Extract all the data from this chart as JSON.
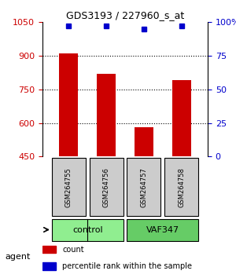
{
  "title": "GDS3193 / 227960_s_at",
  "samples": [
    "GSM264755",
    "GSM264756",
    "GSM264757",
    "GSM264758"
  ],
  "counts": [
    910,
    820,
    580,
    790
  ],
  "percentile_ranks": [
    97,
    97,
    95,
    97
  ],
  "ylim_left": [
    450,
    1050
  ],
  "yticks_left": [
    450,
    600,
    750,
    900,
    1050
  ],
  "ylim_right": [
    0,
    100
  ],
  "yticks_right": [
    0,
    25,
    50,
    75,
    100
  ],
  "yticklabels_right": [
    "0",
    "25",
    "50",
    "75",
    "100%"
  ],
  "bar_color": "#cc0000",
  "dot_color": "#0000cc",
  "groups": [
    {
      "label": "control",
      "samples": [
        0,
        1
      ],
      "color": "#90ee90"
    },
    {
      "label": "VAF347",
      "samples": [
        2,
        3
      ],
      "color": "#66cc66"
    }
  ],
  "group_row_color": "#lightgray",
  "sample_box_color": "#cccccc",
  "agent_label": "agent",
  "legend_items": [
    {
      "color": "#cc0000",
      "label": "count"
    },
    {
      "color": "#0000cc",
      "label": "percentile rank within the sample"
    }
  ],
  "title_color": "#000000",
  "left_tick_color": "#cc0000",
  "right_tick_color": "#0000cc",
  "bar_width": 0.5
}
